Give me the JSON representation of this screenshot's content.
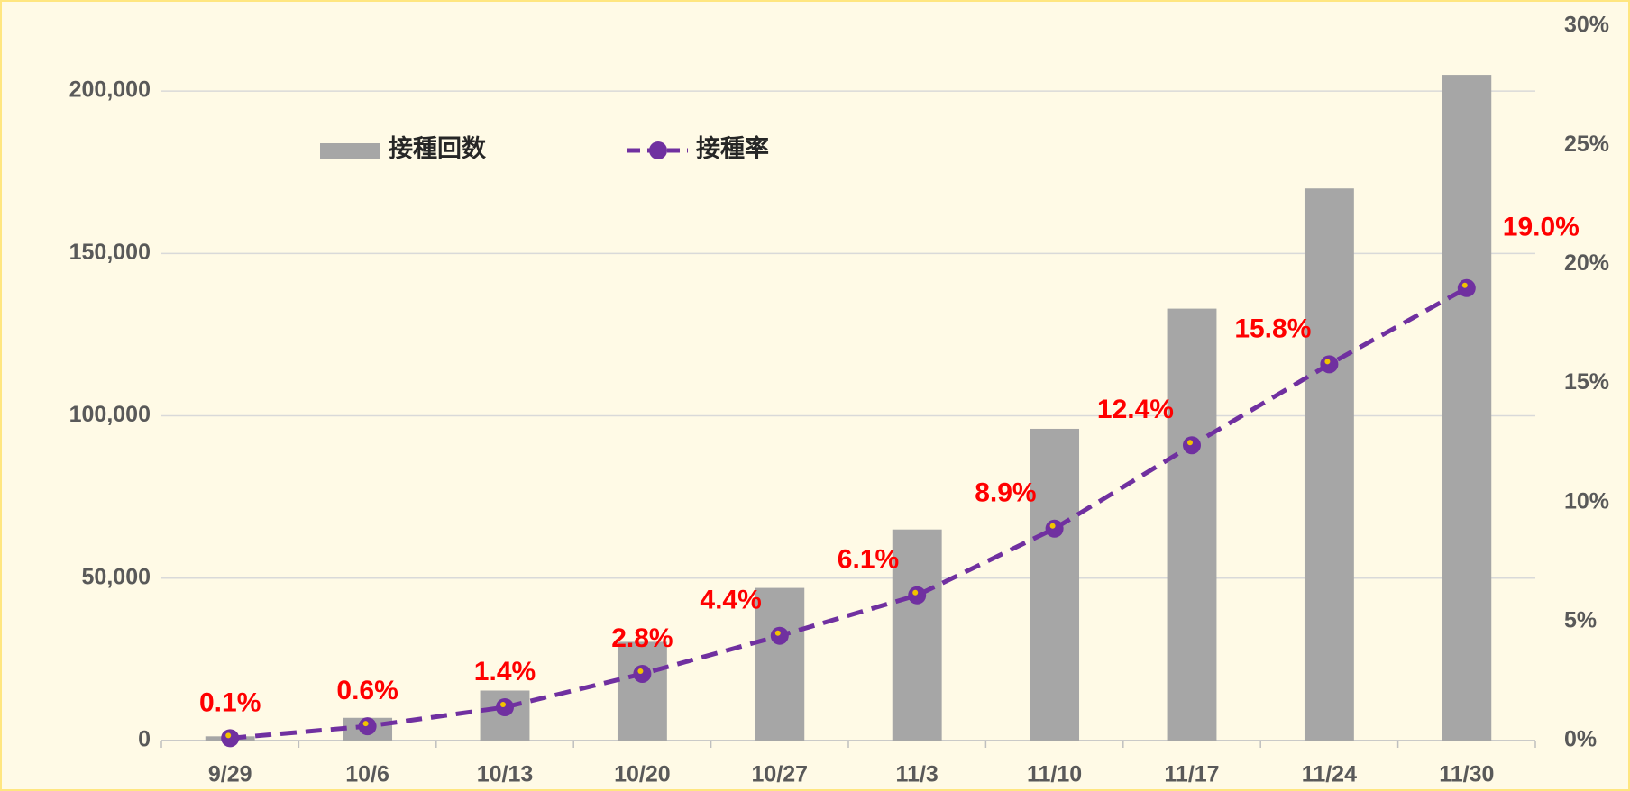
{
  "chart_data": {
    "type": "bar-line",
    "categories": [
      "9/29",
      "10/6",
      "10/13",
      "10/20",
      "10/27",
      "11/3",
      "11/10",
      "11/17",
      "11/24",
      "11/30"
    ],
    "series": [
      {
        "name": "接種回数",
        "type": "bar",
        "color": "#a6a6a6",
        "values": [
          1300,
          7000,
          15400,
          30400,
          47000,
          65000,
          96000,
          133000,
          170000,
          205000
        ]
      },
      {
        "name": "接種率",
        "type": "line",
        "axis": "y2",
        "color": "#7030a0",
        "marker_color": "#7030a0",
        "marker_inner_color": "#f2c300",
        "dashed": true,
        "values": [
          0.1,
          0.6,
          1.4,
          2.8,
          4.4,
          6.1,
          8.9,
          12.4,
          15.8,
          19.0
        ],
        "value_labels": [
          "0.1%",
          "0.6%",
          "1.4%",
          "2.8%",
          "4.4%",
          "6.1%",
          "8.9%",
          "12.4%",
          "15.8%",
          "19.0%"
        ],
        "label_color": "#ff0000"
      }
    ],
    "ylim": [
      0,
      220000
    ],
    "yticks": [
      0,
      {
        "value": 50000,
        "label": "50,000"
      },
      {
        "value": 100000,
        "label": "100,000"
      },
      {
        "value": 150000,
        "label": "150,000"
      },
      {
        "value": 200000,
        "label": "200,000"
      }
    ],
    "y2lim": [
      0,
      30
    ],
    "y2ticks": [
      {
        "value": 0,
        "label": "0%"
      },
      {
        "value": 5,
        "label": "5%"
      },
      {
        "value": 10,
        "label": "10%"
      },
      {
        "value": 15,
        "label": "15%"
      },
      {
        "value": 20,
        "label": "20%"
      },
      {
        "value": 25,
        "label": "25%"
      },
      {
        "value": 30,
        "label": "30%"
      }
    ],
    "grid": true,
    "legend": "top-left"
  }
}
